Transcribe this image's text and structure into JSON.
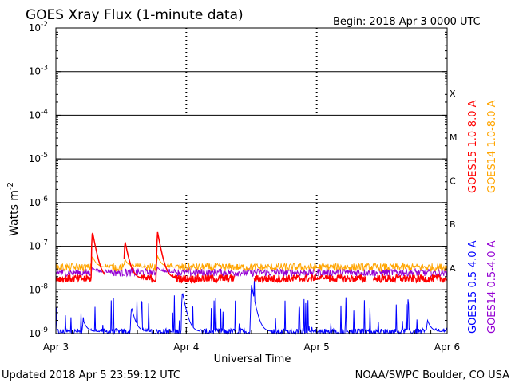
{
  "chart_data": {
    "type": "line",
    "title": "GOES Xray Flux (1-minute data)",
    "begin_label": "Begin:  2018 Apr 3 0000 UTC",
    "xlabel": "Universal Time",
    "ylabel": "Watts m",
    "ylabel_sup": "-2",
    "y_scale": "log",
    "ylim": [
      1e-09,
      0.01
    ],
    "xlim_days": [
      0,
      3
    ],
    "y_ticks": [
      {
        "base": "10",
        "exp": "-2"
      },
      {
        "base": "10",
        "exp": "-3"
      },
      {
        "base": "10",
        "exp": "-4"
      },
      {
        "base": "10",
        "exp": "-5"
      },
      {
        "base": "10",
        "exp": "-6"
      },
      {
        "base": "10",
        "exp": "-7"
      },
      {
        "base": "10",
        "exp": "-8"
      },
      {
        "base": "10",
        "exp": "-9"
      }
    ],
    "x_ticks": [
      "Apr 3",
      "Apr 4",
      "Apr 5",
      "Apr 6"
    ],
    "flare_classes": [
      "X",
      "M",
      "C",
      "B",
      "A"
    ],
    "grid": "horizontal at each decade 1e-8 to 1e-3",
    "series": [
      {
        "name": "GOES15 1.0-8.0 A",
        "color": "#ff0000",
        "approx_level": 1.8e-08,
        "peaks": [
          {
            "t": 0.28,
            "v": 2.2e-07
          },
          {
            "t": 0.53,
            "v": 1.3e-07
          },
          {
            "t": 0.78,
            "v": 2.1e-07
          },
          {
            "t": 1.95,
            "v": 1.4e-08
          }
        ],
        "gaps": [
          [
            0.38,
            0.52
          ],
          [
            1.37,
            1.52
          ],
          [
            2.38,
            2.43
          ]
        ]
      },
      {
        "name": "GOES14 1.0-8.0 A",
        "color": "#ffa500",
        "approx_level": 3.3e-08,
        "peaks": [
          {
            "t": 0.28,
            "v": 6e-08
          },
          {
            "t": 0.53,
            "v": 5e-08
          },
          {
            "t": 0.78,
            "v": 6e-08
          }
        ]
      },
      {
        "name": "GOES15 0.5-4.0 A",
        "color": "#0000ff",
        "approx_level": 1.1e-09,
        "peaks": [
          {
            "t": 0.21,
            "v": 2e-09
          },
          {
            "t": 0.58,
            "v": 4e-09
          },
          {
            "t": 0.97,
            "v": 9e-09
          },
          {
            "t": 1.5,
            "v": 1.3e-08
          },
          {
            "t": 2.85,
            "v": 2e-09
          }
        ]
      },
      {
        "name": "GOES14 0.5-4.0 A",
        "color": "#9400d3",
        "approx_level": 2.5e-08,
        "peaks": [
          {
            "t": 0.28,
            "v": 3.3e-08
          },
          {
            "t": 0.78,
            "v": 3.3e-08
          }
        ]
      }
    ],
    "footer_left": "Updated 2018 Apr  5 23:59:12 UTC",
    "footer_right": "NOAA/SWPC Boulder, CO USA"
  }
}
